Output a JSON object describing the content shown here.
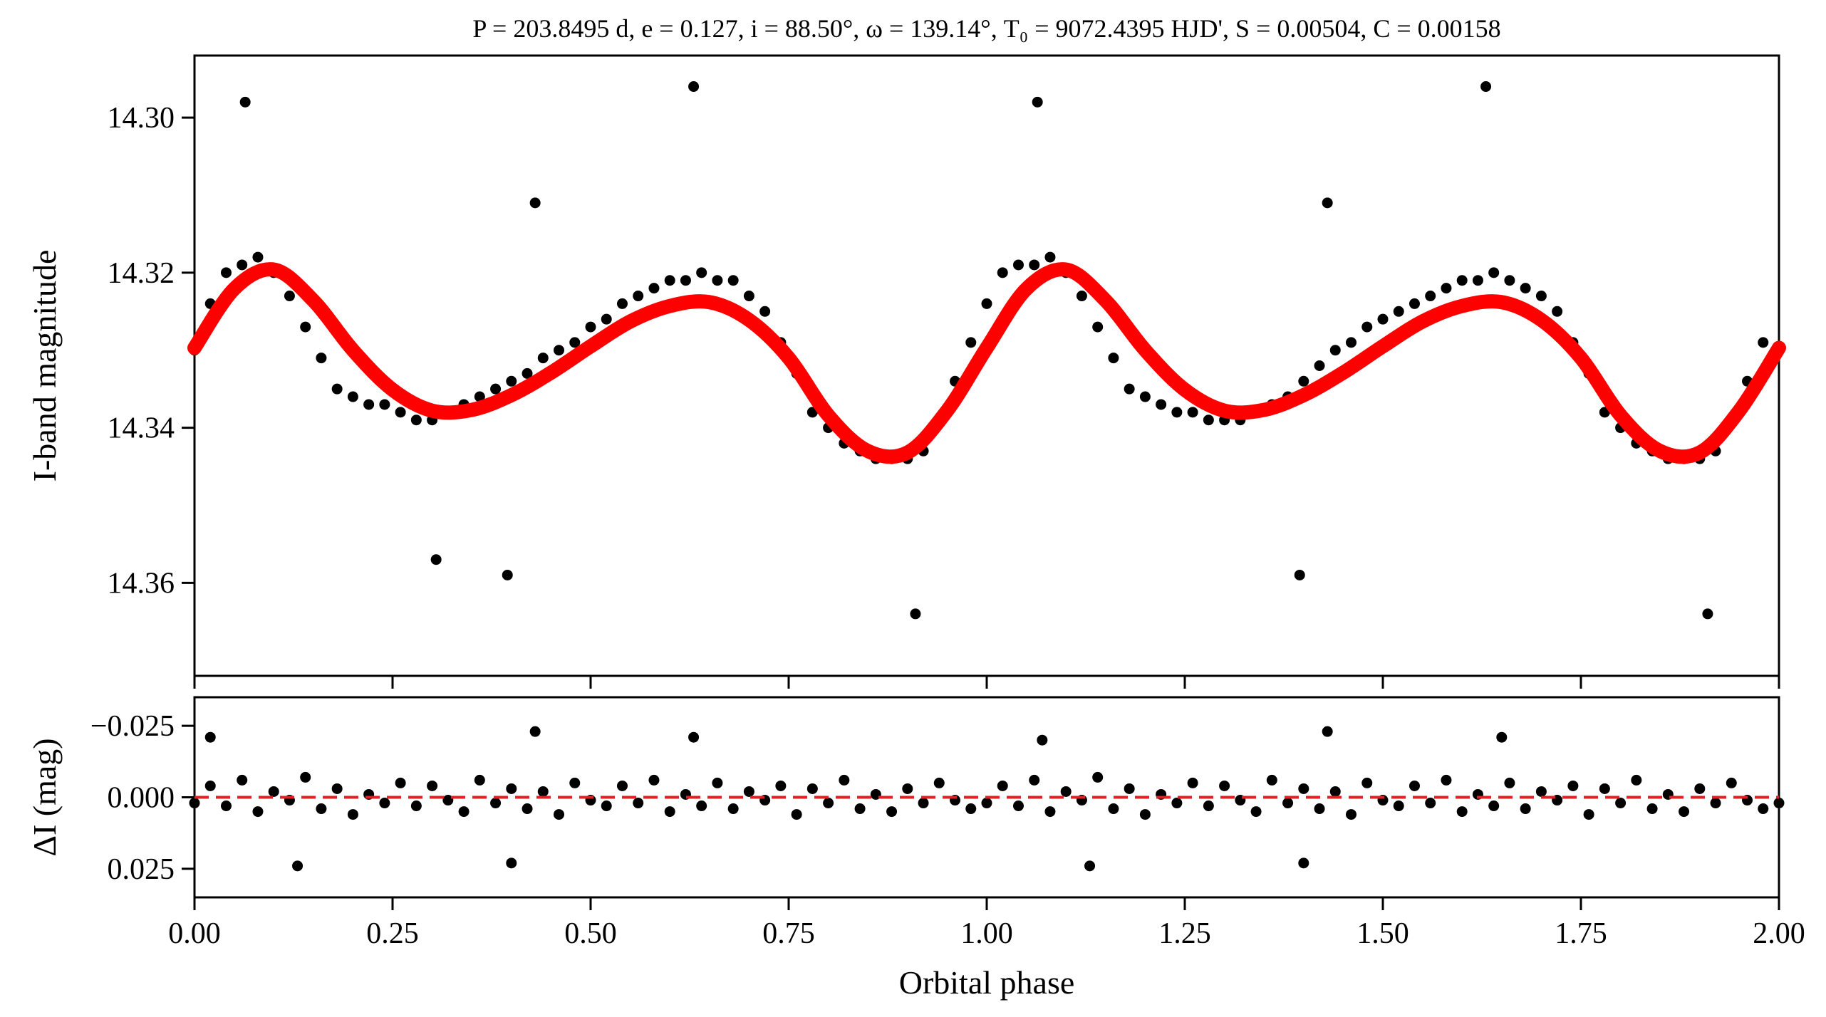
{
  "chart_data": [
    {
      "type": "scatter",
      "title": "P = 203.8495 d, e = 0.127, i = 88.50°, ω = 139.14°, T₀ = 9072.4395 HJD', S = 0.00504, C = 0.00158",
      "xlabel": "",
      "ylabel": "I-band magnitude",
      "xlim": [
        0.0,
        2.0
      ],
      "ylim": [
        14.372,
        14.292
      ],
      "inverted_y": true,
      "grid": false,
      "yticks": [
        "14.30",
        "14.32",
        "14.34",
        "14.36"
      ],
      "marker_color": "#000000",
      "series": [
        {
          "name": "",
          "x": [
            0.0,
            0.02,
            0.04,
            0.06,
            0.08,
            0.1,
            0.12,
            0.14,
            0.16,
            0.18,
            0.2,
            0.22,
            0.24,
            0.26,
            0.28,
            0.3,
            0.32,
            0.34,
            0.36,
            0.38,
            0.4,
            0.42,
            0.44,
            0.46,
            0.48,
            0.5,
            0.52,
            0.54,
            0.56,
            0.58,
            0.6,
            0.62,
            0.64,
            0.66,
            0.68,
            0.7,
            0.72,
            0.74,
            0.76,
            0.78,
            0.8,
            0.82,
            0.84,
            0.86,
            0.88,
            0.9,
            0.92,
            0.94,
            0.96,
            0.98,
            1.0,
            1.02,
            1.04,
            1.06,
            1.08,
            1.1,
            1.12,
            1.14,
            1.16,
            1.18,
            1.2,
            1.22,
            1.24,
            1.26,
            1.28,
            1.3,
            1.32,
            1.34,
            1.36,
            1.38,
            1.4,
            1.42,
            1.44,
            1.46,
            1.48,
            1.5,
            1.52,
            1.54,
            1.56,
            1.58,
            1.6,
            1.62,
            1.64,
            1.66,
            1.68,
            1.7,
            1.72,
            1.74,
            1.76,
            1.78,
            1.8,
            1.82,
            1.84,
            1.86,
            1.88,
            1.9,
            1.92,
            1.94,
            1.96,
            1.98,
            2.0,
            0.064,
            0.63,
            0.91,
            1.064,
            1.63,
            1.91,
            0.305,
            0.395,
            1.395,
            0.43,
            1.43
          ],
          "y": [
            14.33,
            14.324,
            14.32,
            14.319,
            14.318,
            14.32,
            14.323,
            14.327,
            14.331,
            14.335,
            14.336,
            14.337,
            14.337,
            14.338,
            14.339,
            14.339,
            14.338,
            14.337,
            14.336,
            14.335,
            14.334,
            14.333,
            14.331,
            14.33,
            14.329,
            14.327,
            14.326,
            14.324,
            14.323,
            14.322,
            14.321,
            14.321,
            14.32,
            14.321,
            14.321,
            14.323,
            14.325,
            14.329,
            14.333,
            14.338,
            14.34,
            14.342,
            14.343,
            14.344,
            14.344,
            14.344,
            14.343,
            14.339,
            14.334,
            14.329,
            14.324,
            14.32,
            14.319,
            14.319,
            14.318,
            14.32,
            14.323,
            14.327,
            14.331,
            14.335,
            14.336,
            14.337,
            14.338,
            14.338,
            14.339,
            14.339,
            14.339,
            14.338,
            14.337,
            14.336,
            14.334,
            14.332,
            14.33,
            14.329,
            14.327,
            14.326,
            14.325,
            14.324,
            14.323,
            14.322,
            14.321,
            14.321,
            14.32,
            14.321,
            14.322,
            14.323,
            14.325,
            14.329,
            14.333,
            14.338,
            14.34,
            14.342,
            14.343,
            14.344,
            14.344,
            14.344,
            14.343,
            14.339,
            14.334,
            14.329,
            14.33,
            14.298,
            14.296,
            14.364,
            14.298,
            14.296,
            14.364,
            14.357,
            14.359,
            14.359,
            14.311,
            14.311
          ]
        },
        {
          "name": "",
          "x": [
            0.0,
            0.05,
            0.1,
            0.15,
            0.2,
            0.25,
            0.3,
            0.35,
            0.4,
            0.45,
            0.5,
            0.55,
            0.6,
            0.65,
            0.7,
            0.75,
            0.8,
            0.85,
            0.9,
            0.95,
            1.0,
            1.05,
            1.1,
            1.15,
            1.2,
            1.25,
            1.3,
            1.35,
            1.4,
            1.45,
            1.5,
            1.55,
            1.6,
            1.65,
            1.7,
            1.75,
            1.8,
            1.85,
            1.9,
            1.95,
            2.0
          ],
          "y": [
            14.3297,
            14.3221,
            14.3196,
            14.3236,
            14.33,
            14.3351,
            14.3378,
            14.3377,
            14.3358,
            14.3329,
            14.3295,
            14.3263,
            14.3243,
            14.3238,
            14.3261,
            14.331,
            14.3384,
            14.343,
            14.3432,
            14.3378,
            14.3297,
            14.3221,
            14.3196,
            14.3236,
            14.33,
            14.3351,
            14.3378,
            14.3377,
            14.3358,
            14.3329,
            14.3295,
            14.3263,
            14.3243,
            14.3238,
            14.3261,
            14.331,
            14.3384,
            14.343,
            14.3432,
            14.3378,
            14.3297
          ],
          "color": "#ff0000",
          "style": "thick line"
        }
      ]
    },
    {
      "type": "scatter",
      "title": "",
      "xlabel": "Orbital phase",
      "ylabel": "ΔI (mag)",
      "xlim": [
        0.0,
        2.0
      ],
      "ylim": [
        0.035,
        -0.035
      ],
      "inverted_y": true,
      "grid": false,
      "xticks": [
        "0.00",
        "0.25",
        "0.50",
        "0.75",
        "1.00",
        "1.25",
        "1.50",
        "1.75",
        "2.00"
      ],
      "yticks": [
        "−0.025",
        "0.000",
        "0.025"
      ],
      "marker_color": "#000000",
      "series": [
        {
          "name": "",
          "x": [
            0.0,
            0.02,
            0.04,
            0.06,
            0.08,
            0.1,
            0.12,
            0.14,
            0.16,
            0.18,
            0.2,
            0.22,
            0.24,
            0.26,
            0.28,
            0.3,
            0.32,
            0.34,
            0.36,
            0.38,
            0.4,
            0.42,
            0.44,
            0.46,
            0.48,
            0.5,
            0.52,
            0.54,
            0.56,
            0.58,
            0.6,
            0.62,
            0.64,
            0.66,
            0.68,
            0.7,
            0.72,
            0.74,
            0.76,
            0.78,
            0.8,
            0.82,
            0.84,
            0.86,
            0.88,
            0.9,
            0.92,
            0.94,
            0.96,
            0.98,
            1.0,
            1.02,
            1.04,
            1.06,
            1.08,
            1.1,
            1.12,
            1.14,
            1.16,
            1.18,
            1.2,
            1.22,
            1.24,
            1.26,
            1.28,
            1.3,
            1.32,
            1.34,
            1.36,
            1.38,
            1.4,
            1.42,
            1.44,
            1.46,
            1.48,
            1.5,
            1.52,
            1.54,
            1.56,
            1.58,
            1.6,
            1.62,
            1.64,
            1.66,
            1.68,
            1.7,
            1.72,
            1.74,
            1.76,
            1.78,
            1.8,
            1.82,
            1.84,
            1.86,
            1.88,
            1.9,
            1.92,
            1.94,
            1.96,
            1.98,
            2.0,
            0.02,
            0.43,
            0.63,
            1.07,
            1.43,
            1.65,
            0.13,
            0.4,
            1.13,
            1.4
          ],
          "y": [
            0.002,
            -0.004,
            0.003,
            -0.006,
            0.005,
            -0.002,
            0.001,
            -0.007,
            0.004,
            -0.003,
            0.006,
            -0.001,
            0.002,
            -0.005,
            0.003,
            -0.004,
            0.001,
            0.005,
            -0.006,
            0.002,
            -0.003,
            0.004,
            -0.002,
            0.006,
            -0.005,
            0.001,
            0.003,
            -0.004,
            0.002,
            -0.006,
            0.005,
            -0.001,
            0.003,
            -0.005,
            0.004,
            -0.002,
            0.001,
            -0.004,
            0.006,
            -0.003,
            0.002,
            -0.006,
            0.004,
            -0.001,
            0.005,
            -0.003,
            0.002,
            -0.005,
            0.001,
            0.004,
            0.002,
            -0.004,
            0.003,
            -0.006,
            0.005,
            -0.002,
            0.001,
            -0.007,
            0.004,
            -0.003,
            0.006,
            -0.001,
            0.002,
            -0.005,
            0.003,
            -0.004,
            0.001,
            0.005,
            -0.006,
            0.002,
            -0.003,
            0.004,
            -0.002,
            0.006,
            -0.005,
            0.001,
            0.003,
            -0.004,
            0.002,
            -0.006,
            0.005,
            -0.001,
            0.003,
            -0.005,
            0.004,
            -0.002,
            0.001,
            -0.004,
            0.006,
            -0.003,
            0.002,
            -0.006,
            0.004,
            -0.001,
            0.005,
            -0.003,
            0.002,
            -0.005,
            0.001,
            0.004,
            0.002,
            -0.021,
            -0.023,
            -0.021,
            -0.02,
            -0.023,
            -0.021,
            0.024,
            0.023,
            0.024,
            0.023
          ]
        },
        {
          "name": "",
          "x": [
            0.0,
            2.0
          ],
          "y": [
            0.0,
            0.0
          ],
          "color": "#dd2222",
          "style": "dashed"
        }
      ]
    }
  ]
}
